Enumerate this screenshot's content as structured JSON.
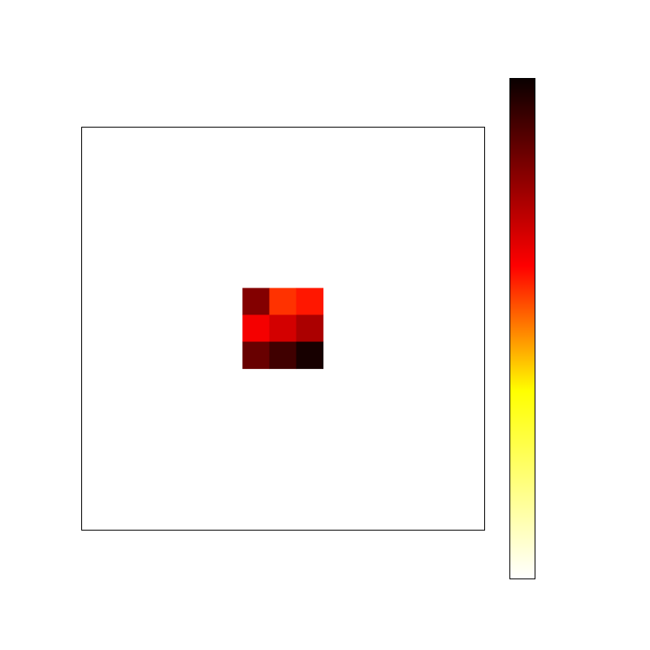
{
  "chart_data": {
    "type": "heatmap",
    "colormap": "hot_r",
    "grid_size": 15,
    "occupied_block": {
      "row_start": 6,
      "col_start": 6,
      "values": [
        [
          0.82,
          0.56,
          0.6
        ],
        [
          0.65,
          0.7,
          0.76
        ],
        [
          0.86,
          0.92,
          0.98
        ]
      ]
    },
    "background_value": 0.0,
    "colorbar": {
      "orientation": "vertical",
      "placement": "right",
      "ticks_shown": false
    },
    "axes": {
      "ticks_shown": false,
      "frame": true
    }
  }
}
